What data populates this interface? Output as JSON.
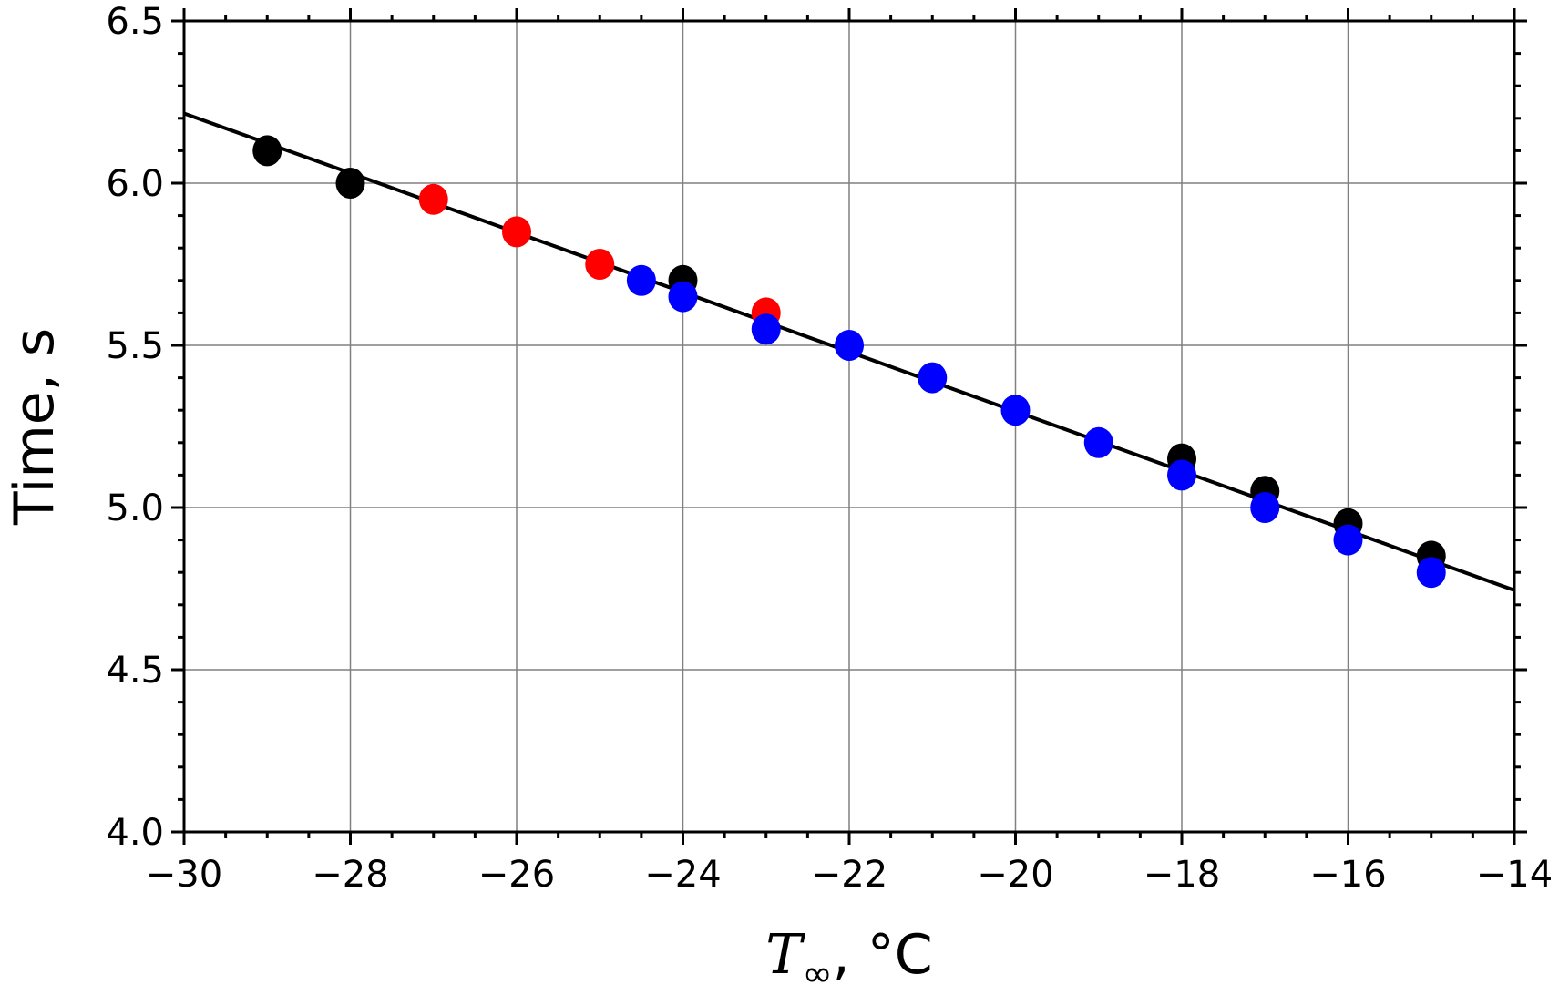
{
  "chart_data": {
    "type": "scatter",
    "title": "",
    "xlabel": "T∞, °C",
    "xlabel_parts": {
      "symbol": "T",
      "subscript": "∞",
      "rest": ", °C"
    },
    "ylabel": "Time, s",
    "xlim": [
      -30,
      -14
    ],
    "ylim": [
      4.0,
      6.5
    ],
    "xticks": [
      -30,
      -28,
      -26,
      -24,
      -22,
      -20,
      -18,
      -16,
      -14
    ],
    "xtick_labels": [
      "−30",
      "−28",
      "−26",
      "−24",
      "−22",
      "−20",
      "−18",
      "−16",
      "−14"
    ],
    "yticks": [
      4.0,
      4.5,
      5.0,
      5.5,
      6.0,
      6.5
    ],
    "ytick_labels": [
      "4.0",
      "4.5",
      "5.0",
      "5.5",
      "6.0",
      "6.5"
    ],
    "grid": true,
    "series": [
      {
        "name": "black",
        "color": "#000000",
        "x": [
          -29,
          -28,
          -24,
          -18,
          -17,
          -16,
          -15
        ],
        "y": [
          6.1,
          6.0,
          5.7,
          5.15,
          5.05,
          4.95,
          4.85
        ]
      },
      {
        "name": "red",
        "color": "#ff0000",
        "x": [
          -27,
          -26,
          -25,
          -23
        ],
        "y": [
          5.95,
          5.85,
          5.75,
          5.6
        ]
      },
      {
        "name": "blue",
        "color": "#0000ff",
        "x": [
          -24.5,
          -24,
          -23,
          -22,
          -21,
          -20,
          -19,
          -18,
          -17,
          -16,
          -15
        ],
        "y": [
          5.7,
          5.65,
          5.55,
          5.5,
          5.4,
          5.3,
          5.2,
          5.1,
          5.0,
          4.9,
          4.8
        ]
      }
    ],
    "fit_line": {
      "color": "#000000",
      "x": [
        -30,
        -14
      ],
      "y": [
        6.215,
        4.745
      ]
    }
  }
}
